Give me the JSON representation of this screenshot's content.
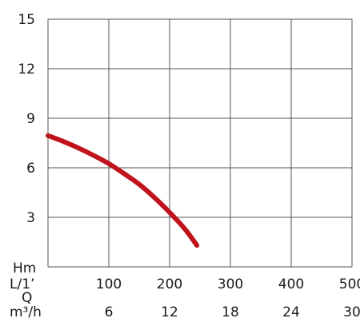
{
  "chart_data": {
    "type": "line",
    "title": "",
    "ylabel": "Hm",
    "ylim": [
      0,
      15
    ],
    "yticks": [
      15,
      12,
      9,
      6,
      3
    ],
    "xlim": [
      0,
      500
    ],
    "x_axes": [
      {
        "label": "L/1’",
        "ticks": [
          "100",
          "200",
          "300",
          "400",
          "500"
        ]
      },
      {
        "label": "m³/h",
        "ticks": [
          "6",
          "12",
          "18",
          "24",
          "30"
        ]
      }
    ],
    "q_label": "Q",
    "grid": true,
    "series": [
      {
        "color": "#c0141c",
        "x": [
          0,
          25,
          50,
          75,
          100,
          125,
          150,
          175,
          200,
          225,
          245
        ],
        "y": [
          7.95,
          7.6,
          7.2,
          6.75,
          6.25,
          5.65,
          5.0,
          4.2,
          3.3,
          2.3,
          1.3
        ]
      }
    ]
  }
}
